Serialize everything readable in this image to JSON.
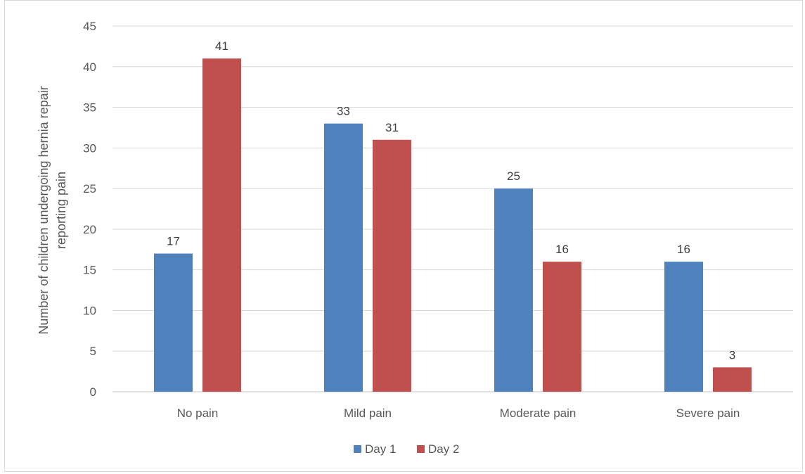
{
  "chart_data": {
    "type": "bar",
    "categories": [
      "No pain",
      "Mild pain",
      "Moderate pain",
      "Severe pain"
    ],
    "series": [
      {
        "name": "Day 1",
        "values": [
          17,
          33,
          25,
          16
        ],
        "color": "#4f81bd"
      },
      {
        "name": "Day 2",
        "values": [
          41,
          31,
          16,
          3
        ],
        "color": "#c0504d"
      }
    ],
    "title": "",
    "xlabel": "",
    "ylabel_lines": [
      "Number of children undergoing hernia repair",
      "reporting pain"
    ],
    "ylim": [
      0,
      45
    ],
    "yticks": [
      0,
      5,
      10,
      15,
      20,
      25,
      30,
      35,
      40,
      45
    ],
    "grid": true,
    "legend_position": "bottom",
    "data_labels": true
  }
}
